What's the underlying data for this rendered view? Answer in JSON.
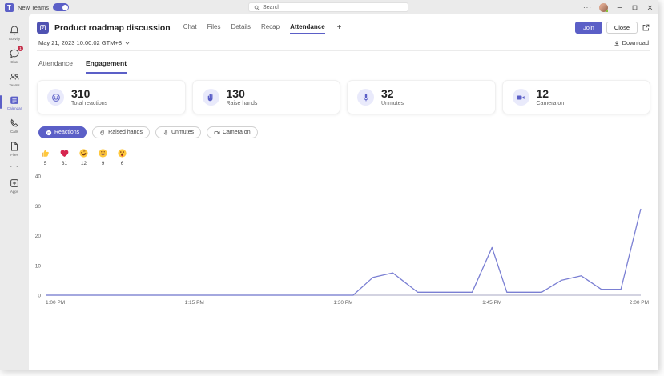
{
  "titlebar": {
    "app_label": "New Teams",
    "search_placeholder": "Search",
    "more_glyph": "···"
  },
  "sidebar": {
    "items": [
      {
        "label": "Activity"
      },
      {
        "label": "Chat",
        "badge": "1"
      },
      {
        "label": "Teams"
      },
      {
        "label": "Calendar",
        "active": true
      },
      {
        "label": "Calls"
      },
      {
        "label": "Files"
      },
      {
        "label": "Apps"
      }
    ],
    "more_glyph": "···"
  },
  "meeting": {
    "title": "Product roadmap discussion",
    "tabs": [
      {
        "label": "Chat"
      },
      {
        "label": "Files"
      },
      {
        "label": "Details"
      },
      {
        "label": "Recap"
      },
      {
        "label": "Attendance",
        "active": true
      }
    ],
    "add_tab_label": "+",
    "join_label": "Join",
    "close_label": "Close"
  },
  "toolbar": {
    "date_label": "May 21, 2023 10:00:02 GTM+8",
    "download_label": "Download"
  },
  "subtabs": [
    {
      "label": "Attendance"
    },
    {
      "label": "Engagement",
      "active": true
    }
  ],
  "stats": [
    {
      "value": "310",
      "label": "Total reactions",
      "icon": "smiley-icon"
    },
    {
      "value": "130",
      "label": "Raise hands",
      "icon": "raised-hand-icon"
    },
    {
      "value": "32",
      "label": "Unmutes",
      "icon": "microphone-icon"
    },
    {
      "value": "12",
      "label": "Camera on",
      "icon": "camera-icon"
    }
  ],
  "filters": [
    {
      "label": "Reactions",
      "active": true,
      "icon": "smiley-icon"
    },
    {
      "label": "Raised hands",
      "icon": "raised-hand-icon"
    },
    {
      "label": "Unmutes",
      "icon": "microphone-icon"
    },
    {
      "label": "Camera on",
      "icon": "camera-icon"
    }
  ],
  "reactions_breakdown": [
    {
      "emoji": "thumbs-up",
      "count": "5"
    },
    {
      "emoji": "heart",
      "count": "31"
    },
    {
      "emoji": "rofl",
      "count": "12"
    },
    {
      "emoji": "laugh",
      "count": "9"
    },
    {
      "emoji": "surprised",
      "count": "6"
    }
  ],
  "colors": {
    "accent": "#5b5fc7",
    "chart_line": "#7a7fd3",
    "axis": "#b9b9cf",
    "status_green": "#6bb700",
    "badge_red": "#c4314b"
  },
  "chart_data": {
    "type": "line",
    "series_name": "Reactions",
    "xlabel": "",
    "ylabel": "",
    "x_ticks": [
      "1:00 PM",
      "1:15 PM",
      "1:30 PM",
      "1:45 PM",
      "2:00 PM"
    ],
    "x_tick_minutes": [
      0,
      15,
      30,
      45,
      60
    ],
    "y_ticks": [
      0,
      10,
      20,
      30,
      40
    ],
    "ylim": [
      0,
      40
    ],
    "xlim_minutes": [
      0,
      60
    ],
    "grid": false,
    "legend": "none",
    "line_color": "#7a7fd3",
    "points": [
      {
        "minute": 0,
        "value": 0
      },
      {
        "minute": 15,
        "value": 0
      },
      {
        "minute": 30,
        "value": 0
      },
      {
        "minute": 31,
        "value": 0
      },
      {
        "minute": 33,
        "value": 6
      },
      {
        "minute": 35,
        "value": 7.5
      },
      {
        "minute": 37.5,
        "value": 1
      },
      {
        "minute": 43,
        "value": 1
      },
      {
        "minute": 45,
        "value": 16
      },
      {
        "minute": 46.5,
        "value": 1
      },
      {
        "minute": 50,
        "value": 1
      },
      {
        "minute": 52,
        "value": 5
      },
      {
        "minute": 54,
        "value": 6.5
      },
      {
        "minute": 56,
        "value": 2
      },
      {
        "minute": 58,
        "value": 2
      },
      {
        "minute": 60,
        "value": 29
      }
    ]
  }
}
